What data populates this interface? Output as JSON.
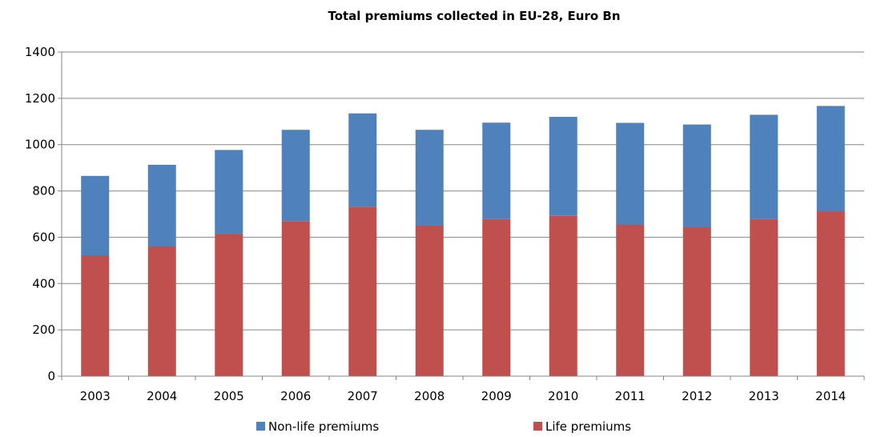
{
  "chart_data": {
    "type": "bar",
    "stacked": true,
    "title": "Total premiums collected in EU-28, Euro Bn",
    "xlabel": "",
    "ylabel": "",
    "categories": [
      "2003",
      "2004",
      "2005",
      "2006",
      "2007",
      "2008",
      "2009",
      "2010",
      "2011",
      "2012",
      "2013",
      "2014"
    ],
    "series": [
      {
        "name": "Life premiums",
        "color": "#c0504d",
        "values": [
          522,
          560,
          615,
          670,
          732,
          650,
          678,
          692,
          655,
          643,
          678,
          712
        ]
      },
      {
        "name": "Non-life premiums",
        "color": "#4f81bd",
        "values": [
          343,
          353,
          362,
          394,
          403,
          414,
          417,
          428,
          439,
          444,
          451,
          455
        ]
      }
    ],
    "ylim": [
      0,
      1400
    ],
    "yticks": [
      0,
      200,
      400,
      600,
      800,
      1000,
      1200,
      1400
    ],
    "grid": true,
    "legend": {
      "position": "bottom",
      "order": [
        "Non-life premiums",
        "Life premiums"
      ]
    }
  }
}
